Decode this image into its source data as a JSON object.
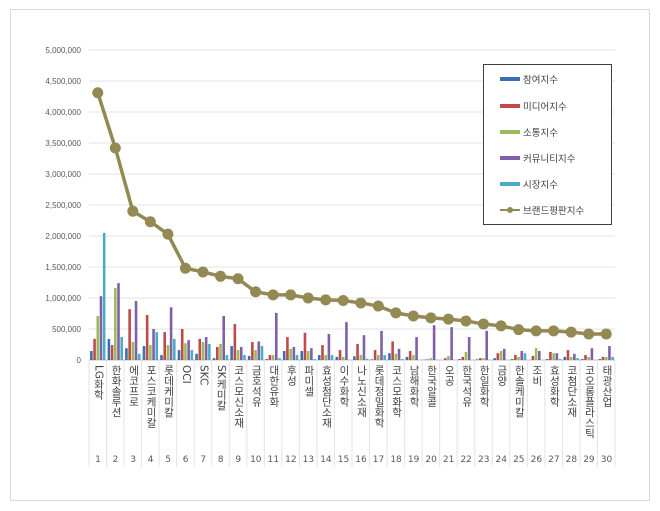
{
  "chart_data": {
    "type": "bar+line",
    "categories": [
      "LG화학",
      "한화솔루션",
      "에코프로",
      "포스코케미칼",
      "롯데케미칼",
      "OCI",
      "SKC",
      "SK케미칼",
      "코스모신소재",
      "금호석유",
      "대한유화",
      "후성",
      "파미셀",
      "효성첨단소재",
      "이수화학",
      "나노신소재",
      "롯데정밀화학",
      "코스모화학",
      "남해화학",
      "한국알콜",
      "오공",
      "한국석유",
      "한일화학",
      "금양",
      "한솔케미칼",
      "조비",
      "효성화학",
      "코첨단소재",
      "코오롱플라스틱",
      "태광산업"
    ],
    "category_numbers": [
      "1",
      "2",
      "3",
      "4",
      "5",
      "6",
      "7",
      "8",
      "9",
      "10",
      "11",
      "12",
      "13",
      "14",
      "15",
      "16",
      "17",
      "18",
      "19",
      "20",
      "21",
      "22",
      "23",
      "24",
      "25",
      "26",
      "27",
      "28",
      "29",
      "30"
    ],
    "ylim": [
      0,
      5000000
    ],
    "yticks": [
      "0",
      "500,000",
      "1,000,000",
      "1,500,000",
      "2,000,000",
      "2,500,000",
      "3,000,000",
      "3,500,000",
      "4,000,000",
      "4,500,000",
      "5,000,000"
    ],
    "grid": true,
    "legend_position": "top-right",
    "series": [
      {
        "name": "참여지수",
        "type": "bar",
        "color": "#3d6eb4",
        "values": [
          145000,
          340000,
          190000,
          225000,
          80000,
          160000,
          100000,
          30000,
          225000,
          65000,
          15000,
          145000,
          145000,
          80000,
          50000,
          60000,
          10000,
          110000,
          50000,
          5000,
          0,
          15000,
          10000,
          30000,
          15000,
          0,
          15000,
          50000,
          15000,
          15000
        ]
      },
      {
        "name": "미디어지수",
        "type": "bar",
        "color": "#be4b48",
        "values": [
          340000,
          240000,
          820000,
          725000,
          450000,
          500000,
          340000,
          210000,
          580000,
          290000,
          80000,
          370000,
          440000,
          240000,
          160000,
          260000,
          160000,
          300000,
          145000,
          10000,
          30000,
          50000,
          30000,
          110000,
          80000,
          65000,
          130000,
          160000,
          80000,
          50000
        ]
      },
      {
        "name": "소통지수",
        "type": "bar",
        "color": "#9bbb59",
        "values": [
          710000,
          1160000,
          290000,
          240000,
          240000,
          270000,
          290000,
          260000,
          160000,
          160000,
          80000,
          180000,
          145000,
          80000,
          50000,
          80000,
          80000,
          100000,
          80000,
          30000,
          65000,
          130000,
          30000,
          145000,
          50000,
          190000,
          110000,
          50000,
          50000,
          50000
        ]
      },
      {
        "name": "커뮤니티지수",
        "type": "bar",
        "color": "#7f60a8",
        "values": [
          1030000,
          1240000,
          950000,
          500000,
          850000,
          320000,
          370000,
          710000,
          210000,
          300000,
          760000,
          210000,
          190000,
          420000,
          610000,
          400000,
          470000,
          180000,
          370000,
          560000,
          530000,
          370000,
          470000,
          180000,
          145000,
          145000,
          110000,
          100000,
          190000,
          225000
        ]
      },
      {
        "name": "시장지수",
        "type": "bar",
        "color": "#4bacc6",
        "values": [
          2050000,
          370000,
          100000,
          450000,
          340000,
          160000,
          260000,
          80000,
          80000,
          225000,
          30000,
          80000,
          15000,
          80000,
          0,
          20000,
          80000,
          15000,
          0,
          0,
          0,
          0,
          0,
          0,
          110000,
          0,
          15000,
          30000,
          0,
          50000
        ]
      },
      {
        "name": "브랜드평판지수",
        "type": "line",
        "color": "#938953",
        "values": [
          4310000,
          3420000,
          2400000,
          2230000,
          2030000,
          1480000,
          1420000,
          1350000,
          1310000,
          1100000,
          1050000,
          1050000,
          1000000,
          970000,
          960000,
          920000,
          870000,
          760000,
          710000,
          680000,
          660000,
          630000,
          580000,
          550000,
          490000,
          470000,
          470000,
          450000,
          420000,
          420000
        ]
      }
    ]
  }
}
